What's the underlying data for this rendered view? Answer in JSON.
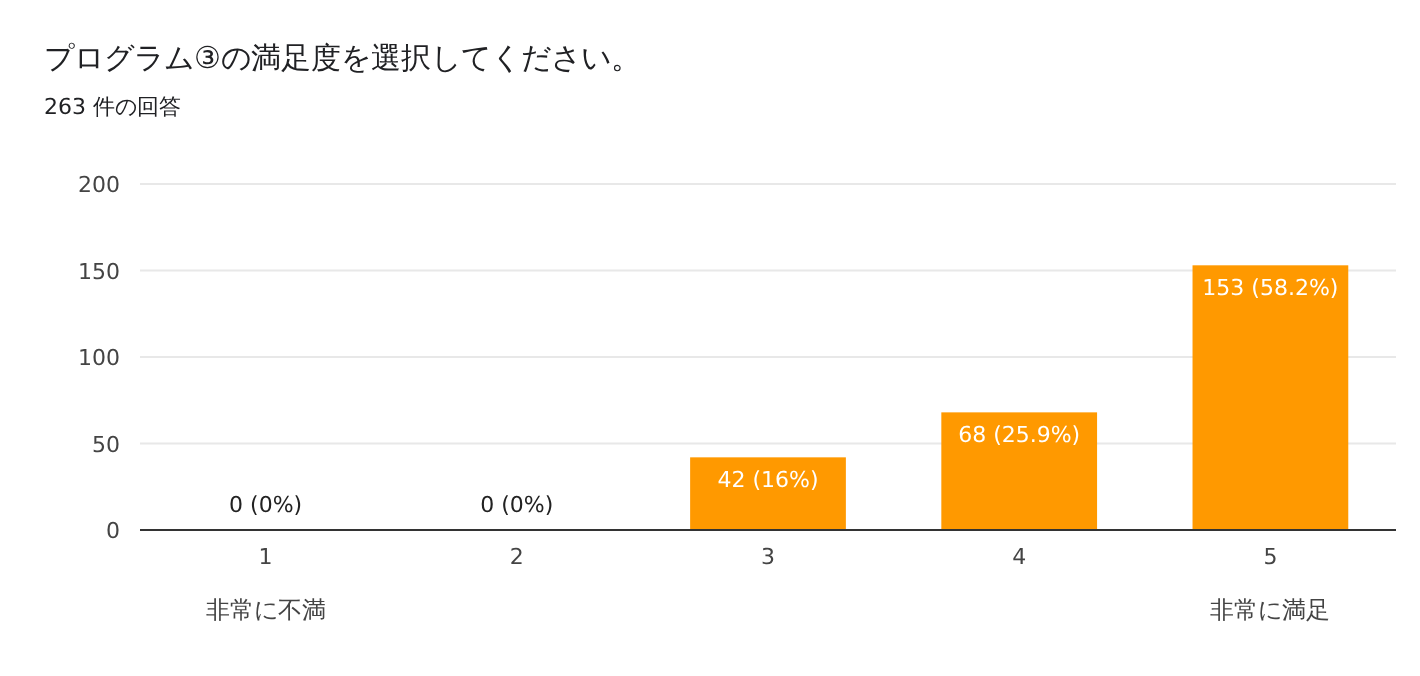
{
  "chart_data": {
    "type": "bar",
    "title": "プログラム③の満足度を選択してください。",
    "subtitle": "263 件の回答",
    "categories": [
      "1\n非常に不満",
      "2",
      "3",
      "4",
      "5\n非常に満足"
    ],
    "values": [
      0,
      0,
      42,
      68,
      153
    ],
    "value_labels": [
      "0 (0%)",
      "0 (0%)",
      "42 (16%)",
      "68 (25.9%)",
      "153 (58.2%)"
    ],
    "color": "#ff9900",
    "ylim": [
      0,
      200
    ],
    "yticks": [
      0,
      50,
      100,
      150,
      200
    ],
    "grid": "y"
  }
}
